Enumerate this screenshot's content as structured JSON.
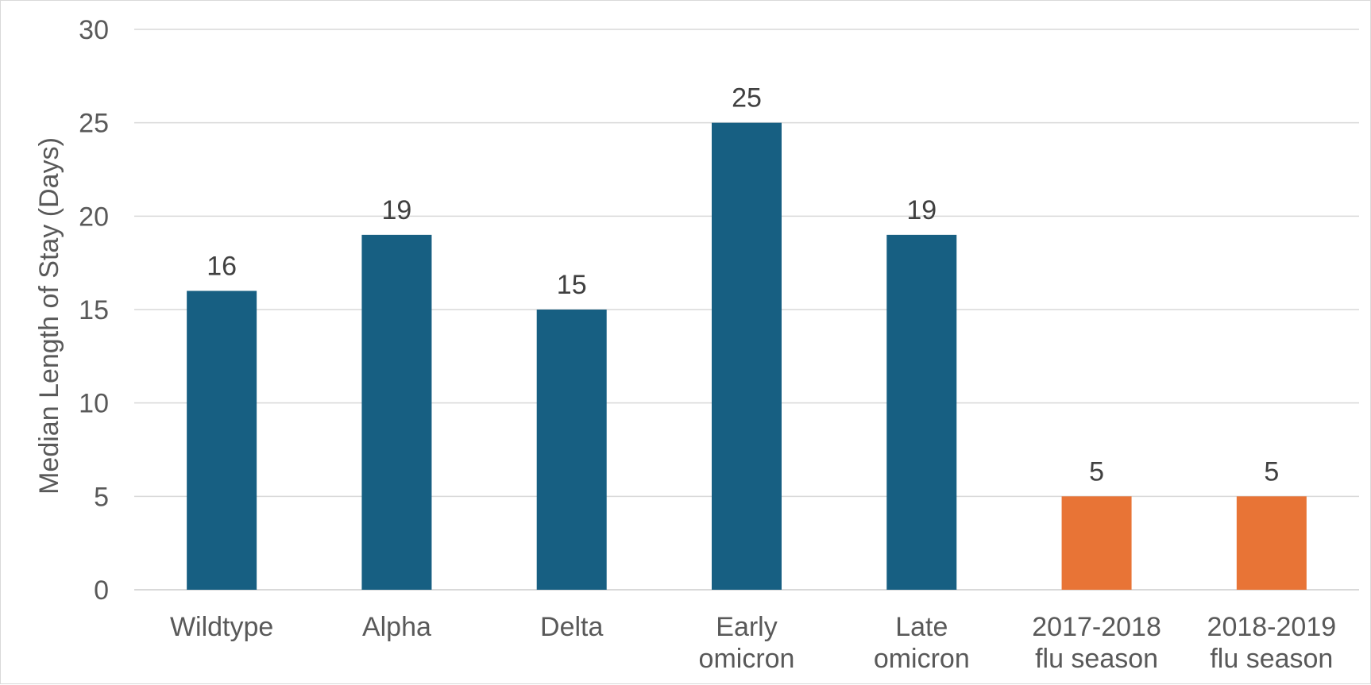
{
  "chart_data": {
    "type": "bar",
    "title": "",
    "xlabel": "",
    "ylabel": "Median Length of Stay (Days)",
    "ylim": [
      0,
      30
    ],
    "yticks": [
      0,
      5,
      10,
      15,
      20,
      25,
      30
    ],
    "grid": true,
    "legend": "none",
    "categories": [
      [
        "Wildtype"
      ],
      [
        "Alpha"
      ],
      [
        "Delta"
      ],
      [
        "Early",
        "omicron"
      ],
      [
        "Late",
        "omicron"
      ],
      [
        "2017-2018",
        "flu season"
      ],
      [
        "2018-2019",
        "flu season"
      ]
    ],
    "values": [
      16,
      19,
      15,
      25,
      19,
      5,
      5
    ],
    "bar_colors": [
      "#175f82",
      "#175f82",
      "#175f82",
      "#175f82",
      "#175f82",
      "#e87436",
      "#e87436"
    ],
    "gridline_color": "#d9d9d9",
    "text_color": "#595959"
  }
}
